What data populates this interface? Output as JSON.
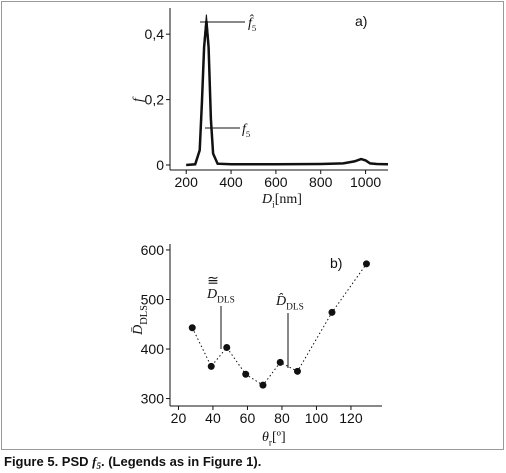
{
  "chart_data": [
    {
      "type": "line",
      "panel_label": "a)",
      "ylabel": {
        "main": "f"
      },
      "xlabel": {
        "main": "D",
        "sub": "i",
        "unit": "[nm]"
      },
      "x": [
        200,
        240,
        260,
        270,
        280,
        290,
        300,
        310,
        320,
        340,
        400,
        600,
        800,
        900,
        950,
        980,
        1000,
        1020,
        1050,
        1100
      ],
      "series": [
        {
          "label": {
            "main": "f̂",
            "sub": "5"
          },
          "color": "#111111",
          "values": [
            0,
            0.002,
            0.05,
            0.2,
            0.38,
            0.46,
            0.38,
            0.15,
            0.04,
            0.005,
            0.002,
            0.002,
            0.003,
            0.005,
            0.012,
            0.02,
            0.015,
            0.006,
            0.003,
            0.002
          ]
        },
        {
          "label": {
            "main": "f",
            "sub": "5"
          },
          "color": "#111111",
          "values": [
            0,
            0.002,
            0.045,
            0.19,
            0.36,
            0.44,
            0.36,
            0.14,
            0.035,
            0.004,
            0.002,
            0.002,
            0.003,
            0.005,
            0.011,
            0.018,
            0.014,
            0.005,
            0.003,
            0.002
          ]
        }
      ],
      "xlim": [
        150,
        1100
      ],
      "xticks": [
        200,
        400,
        600,
        800,
        1000
      ],
      "ylim": [
        0,
        0.48
      ],
      "yticks": [
        0,
        {
          "value": 0.2,
          "label": "0,2"
        },
        {
          "value": 0.4,
          "label": "0,4"
        }
      ]
    },
    {
      "type": "scatter",
      "panel_label": "b)",
      "ylabel": {
        "main": "D̄",
        "sub": "DLS"
      },
      "xlabel": {
        "main": "θ",
        "sub": "r",
        "unit": "[º]"
      },
      "x": [
        28,
        39,
        48,
        59,
        69,
        79,
        89,
        109,
        129
      ],
      "values": [
        443,
        365,
        403,
        349,
        327,
        373,
        355,
        474,
        572
      ],
      "color": "#111111",
      "annotations": [
        {
          "accent": "≅",
          "main": "D",
          "sub": "DLS"
        },
        {
          "main": "D̂",
          "sub": "DLS"
        }
      ],
      "xlim": [
        18,
        138
      ],
      "xticks": [
        20,
        40,
        60,
        80,
        100,
        120
      ],
      "ylim": [
        287,
        612
      ],
      "yticks": [
        300,
        400,
        500,
        600
      ]
    }
  ],
  "caption": {
    "before": "Figure 5. PSD ",
    "symbol": "f",
    "sub": "5",
    "after": ". (Legends as in Figure 1)."
  }
}
